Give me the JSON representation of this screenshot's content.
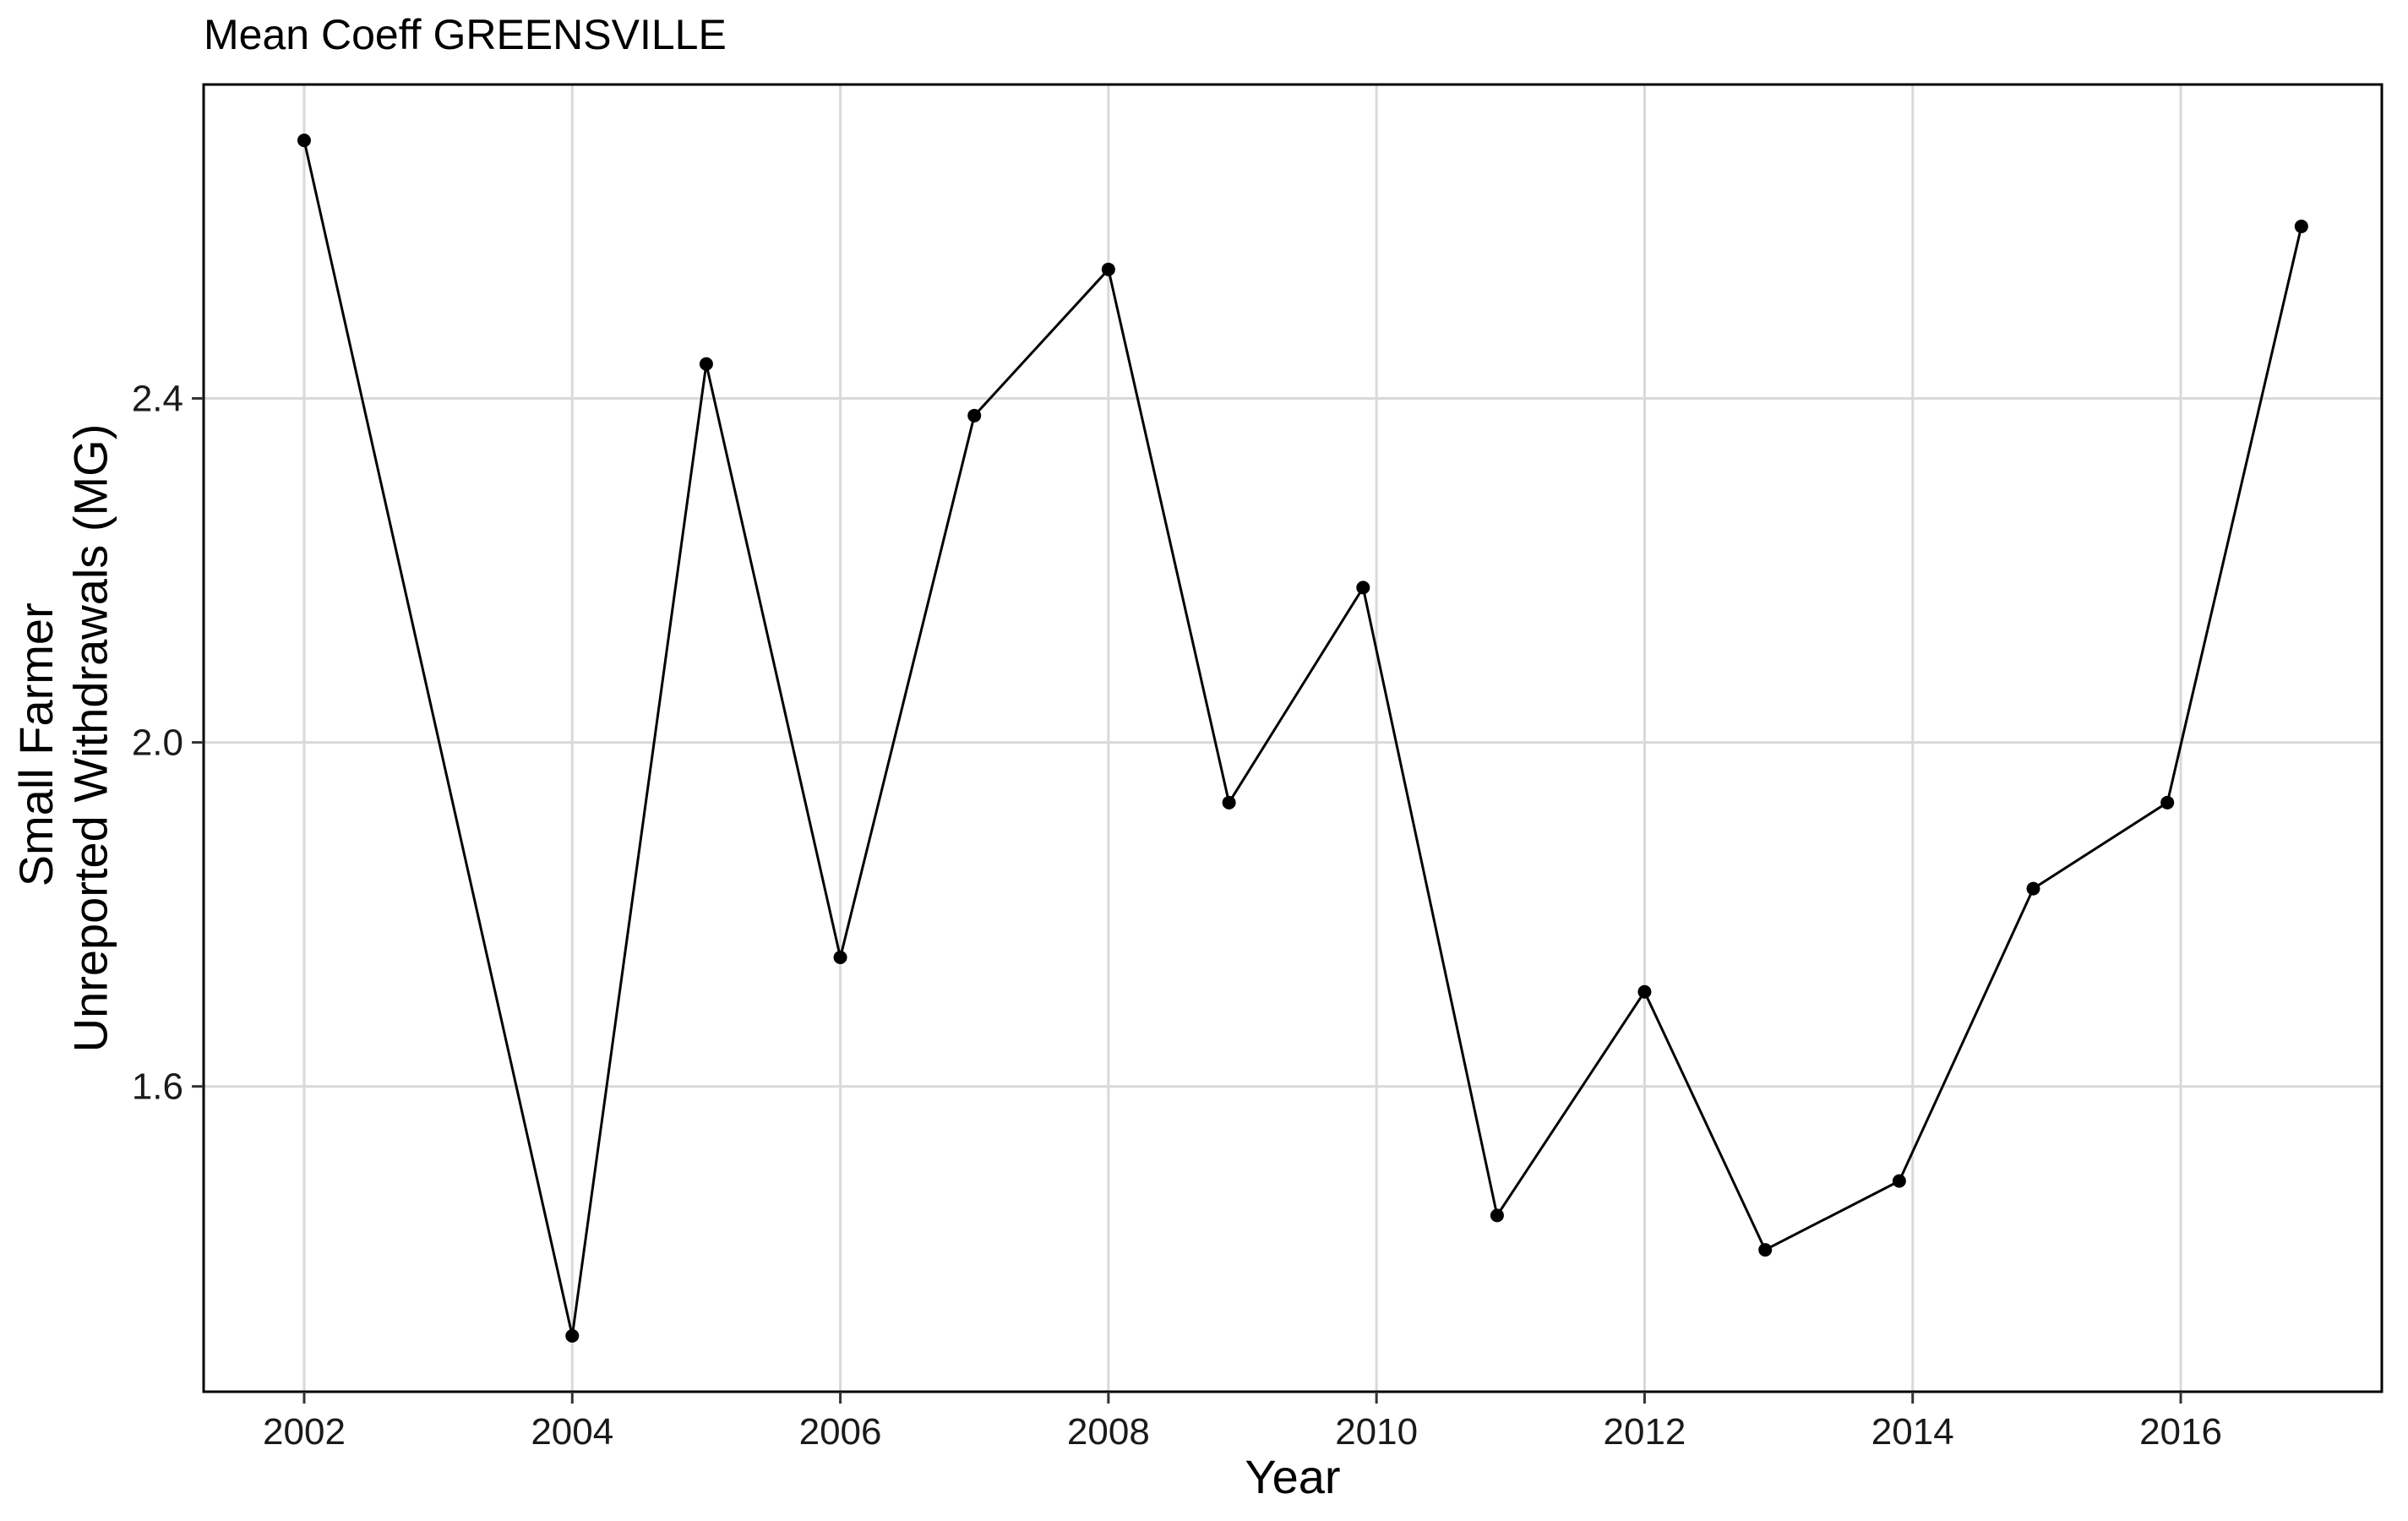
{
  "chart_data": {
    "type": "line",
    "title": "Mean Coeff GREENSVILLE",
    "xlabel": "Year",
    "ylabel_lines": [
      "Small Farmer",
      "Unreported Withdrawals (MG)"
    ],
    "xlim": [
      2001.25,
      2017.5
    ],
    "ylim": [
      1.245,
      2.765
    ],
    "x_ticks": [
      2002,
      2004,
      2006,
      2008,
      2010,
      2012,
      2014,
      2016
    ],
    "y_ticks": [
      1.6,
      2.0,
      2.4
    ],
    "y_tick_labels": [
      "1.6",
      "2.0",
      "2.4"
    ],
    "grid": true,
    "series": [
      {
        "x": [
          2002.0,
          2004.0,
          2005.0,
          2006.0,
          2007.0,
          2008.0,
          2008.9,
          2009.9,
          2010.9,
          2012.0,
          2012.9,
          2013.9,
          2014.9,
          2015.9,
          2016.9
        ],
        "y": [
          2.7,
          1.31,
          2.44,
          1.75,
          2.38,
          2.55,
          1.93,
          2.18,
          1.45,
          1.71,
          1.41,
          1.49,
          1.83,
          1.93,
          2.6
        ]
      }
    ],
    "color": "#000000"
  }
}
